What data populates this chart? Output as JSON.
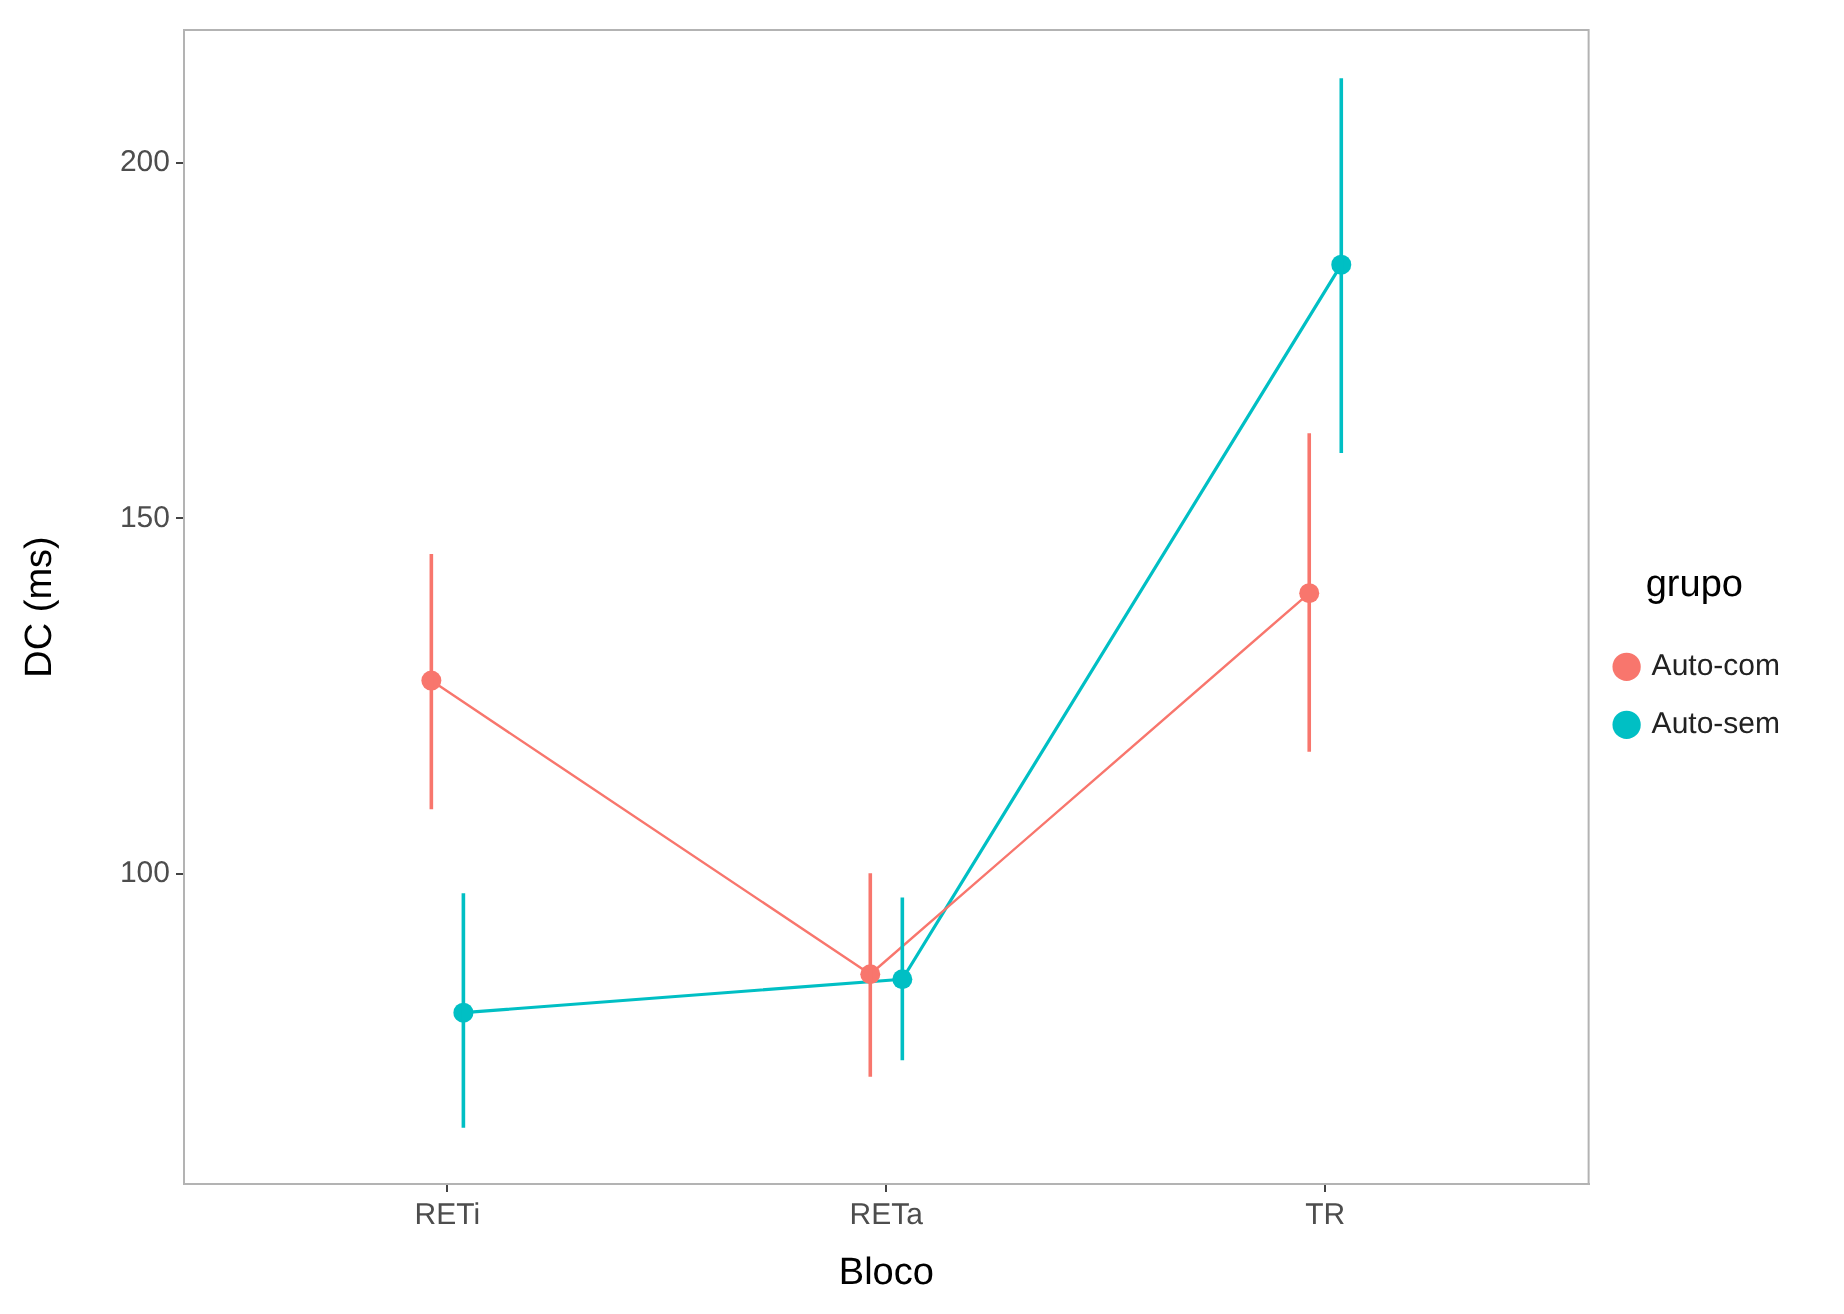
{
  "chart_data": {
    "type": "line",
    "xlabel": "Bloco",
    "ylabel": "DC (ms)",
    "legend_title": "grupo",
    "legend": "right",
    "grid": false,
    "marker": "circle",
    "categories": [
      "RETi",
      "RETa",
      "TR"
    ],
    "ylim": [
      56.4,
      218.7
    ],
    "yticks": [
      100,
      150,
      200
    ],
    "series": [
      {
        "name": "Auto-com",
        "color": "#f8766d",
        "values": [
          127.2,
          85.9,
          139.5
        ],
        "errors": [
          [
            109.1,
            145.0
          ],
          [
            71.5,
            100.1
          ],
          [
            117.2,
            162.0
          ]
        ]
      },
      {
        "name": "Auto-sem",
        "color": "#00bfc4",
        "values": [
          80.5,
          85.2,
          185.7
        ],
        "errors": [
          [
            64.3,
            97.3
          ],
          [
            73.8,
            96.7
          ],
          [
            159.2,
            211.9
          ]
        ]
      }
    ]
  }
}
